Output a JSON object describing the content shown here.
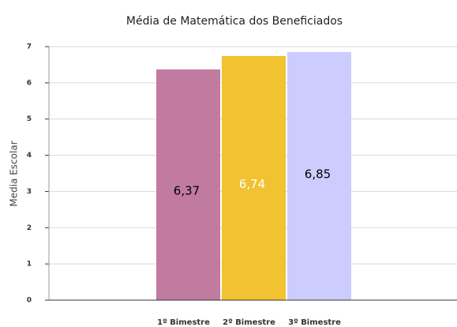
{
  "chart_data": {
    "type": "bar",
    "title": "Média de Matemática dos Beneficiados",
    "y_label": "Media Escolar",
    "categories": [
      "1º Bimestre",
      "2º Bimestre",
      "3º Bimestre"
    ],
    "values": [
      6.37,
      6.74,
      6.85
    ],
    "value_labels": [
      "6,37",
      "6,74",
      "6,85"
    ],
    "colors": [
      "#c27ba0",
      "#f1c232",
      "#ccccff"
    ],
    "value_label_colors": [
      "#000000",
      "#ffffff",
      "#000000"
    ],
    "ylim": [
      0,
      7
    ],
    "yticks": [
      0,
      1,
      2,
      3,
      4,
      5,
      6,
      7
    ],
    "grid": true
  }
}
